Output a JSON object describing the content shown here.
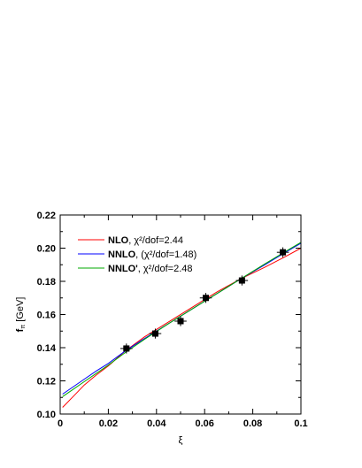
{
  "chart_data": {
    "type": "line",
    "xlabel": "ξ",
    "ylabel_main": "f",
    "ylabel_sub": "π",
    "ylabel_unit": " [GeV]",
    "xlim": [
      0,
      0.1
    ],
    "ylim": [
      0.1,
      0.22
    ],
    "x_ticks": [
      0,
      0.02,
      0.04,
      0.06,
      0.08,
      0.1
    ],
    "x_tick_labels": [
      "0",
      "0.02",
      "0.04",
      "0.06",
      "0.08",
      "0.1"
    ],
    "y_ticks": [
      0.1,
      0.12,
      0.14,
      0.16,
      0.18,
      0.2,
      0.22
    ],
    "y_tick_labels": [
      "0.10",
      "0.12",
      "0.14",
      "0.16",
      "0.18",
      "0.20",
      "0.22"
    ],
    "grid": false,
    "legend_position": "top-left",
    "series": [
      {
        "name": "NLO",
        "legend_rest": ",  χ²/dof=2.44",
        "color": "#ff0000",
        "x": [
          0.001,
          0.005,
          0.01,
          0.015,
          0.02,
          0.027,
          0.035,
          0.045,
          0.055,
          0.065,
          0.075,
          0.085,
          0.093,
          0.1
        ],
        "y": [
          0.104,
          0.11,
          0.1175,
          0.1235,
          0.129,
          0.138,
          0.1465,
          0.1555,
          0.1645,
          0.1735,
          0.1815,
          0.1885,
          0.1945,
          0.2
        ]
      },
      {
        "name": "NNLO",
        "legend_rest": ", (χ²/dof=1.48)",
        "color": "#0000ff",
        "x": [
          0.001,
          0.005,
          0.01,
          0.015,
          0.02,
          0.027,
          0.035,
          0.045,
          0.055,
          0.065,
          0.075,
          0.085,
          0.093,
          0.1
        ],
        "y": [
          0.112,
          0.116,
          0.121,
          0.126,
          0.1305,
          0.138,
          0.1455,
          0.1545,
          0.1635,
          0.1725,
          0.1815,
          0.19,
          0.197,
          0.203
        ]
      },
      {
        "name": "NNLO'",
        "legend_rest": ", χ²/dof=2.48",
        "color": "#00aa00",
        "x": [
          0.001,
          0.005,
          0.01,
          0.015,
          0.02,
          0.027,
          0.035,
          0.045,
          0.055,
          0.065,
          0.075,
          0.085,
          0.093,
          0.1
        ],
        "y": [
          0.1105,
          0.1145,
          0.1195,
          0.1245,
          0.1295,
          0.137,
          0.145,
          0.1545,
          0.1635,
          0.1725,
          0.1815,
          0.1905,
          0.1975,
          0.2035
        ]
      }
    ],
    "points": {
      "x": [
        0.0275,
        0.0395,
        0.05,
        0.0605,
        0.0755,
        0.0925
      ],
      "y": [
        0.1395,
        0.1485,
        0.156,
        0.17,
        0.1805,
        0.1975
      ],
      "xerr": [
        0.0025,
        0.0025,
        0.0025,
        0.0025,
        0.0025,
        0.0025
      ],
      "yerr": [
        0.003,
        0.003,
        0.003,
        0.003,
        0.003,
        0.003
      ],
      "color": "#000000"
    }
  }
}
